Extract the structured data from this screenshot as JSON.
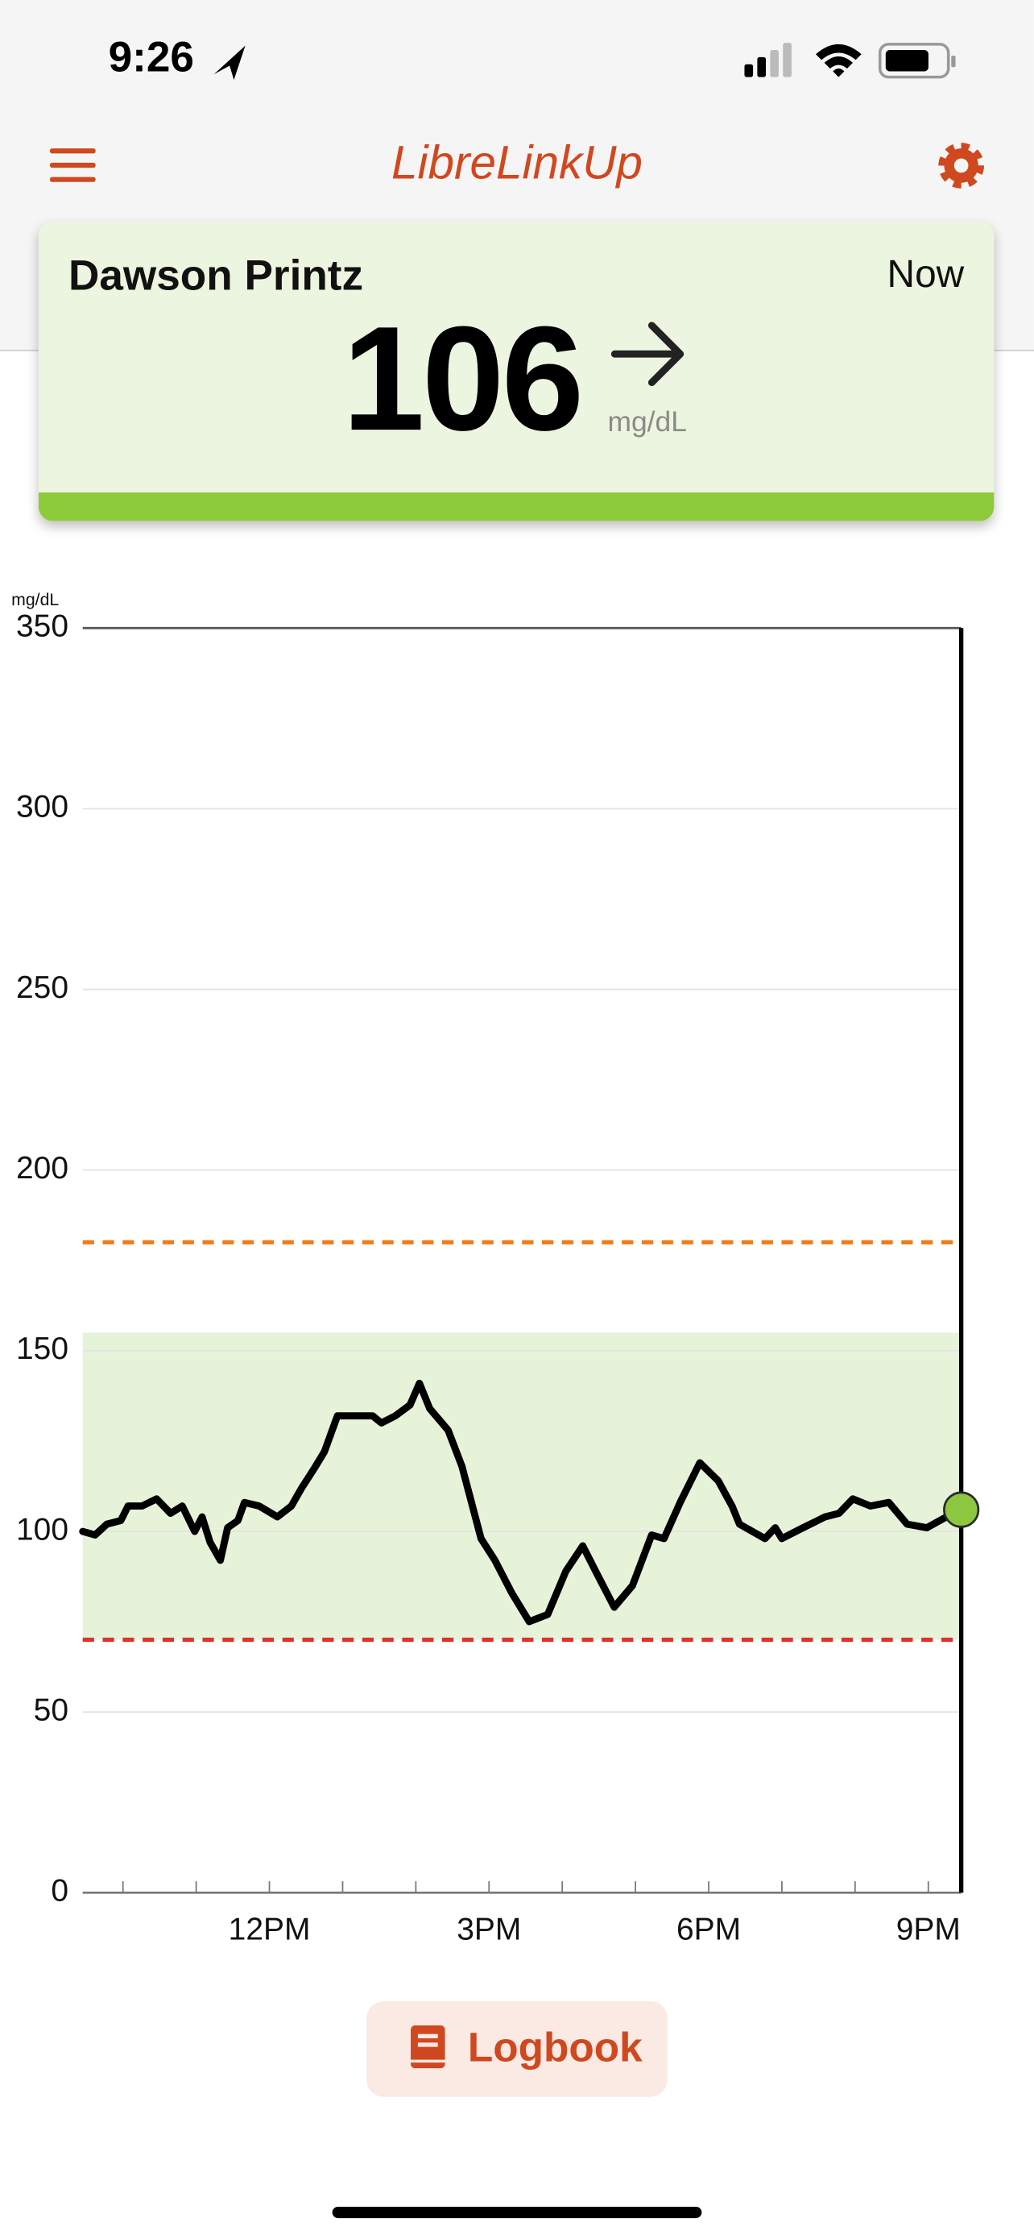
{
  "status_bar": {
    "time": "9:26"
  },
  "header": {
    "title": "LibreLinkUp"
  },
  "reading": {
    "name": "Dawson Printz",
    "time": "Now",
    "value": 106,
    "unit": "mg/dL"
  },
  "chart_data": {
    "type": "line",
    "y_label": "mg/dL",
    "ylim": [
      0,
      350
    ],
    "yticks": [
      0,
      50,
      100,
      150,
      200,
      250,
      300,
      350
    ],
    "grid": true,
    "xlim": [
      9.45,
      21.45
    ],
    "xticks": [
      {
        "value": 12,
        "label": "12PM"
      },
      {
        "value": 15,
        "label": "3PM"
      },
      {
        "value": 18,
        "label": "6PM"
      },
      {
        "value": 21,
        "label": "9PM"
      }
    ],
    "x_minor_ticks": [
      10,
      11,
      13,
      14,
      16,
      17,
      19,
      20
    ],
    "target_range": [
      70,
      155
    ],
    "target_color": "#e6f3d9",
    "high_limit": 180,
    "high_color": "#f07d1a",
    "low_limit": 70,
    "low_color": "#e0322d",
    "color": "#000000",
    "current_color": "#8dc63f",
    "x": [
      9.45,
      9.62,
      9.78,
      9.97,
      10.07,
      10.26,
      10.46,
      10.65,
      10.81,
      10.98,
      11.08,
      11.19,
      11.33,
      11.43,
      11.57,
      11.66,
      11.86,
      12.11,
      12.3,
      12.44,
      12.6,
      12.75,
      12.93,
      13.18,
      13.41,
      13.53,
      13.72,
      13.92,
      14.05,
      14.19,
      14.44,
      14.63,
      14.89,
      15.08,
      15.31,
      15.55,
      15.8,
      16.05,
      16.28,
      16.48,
      16.71,
      16.96,
      17.22,
      17.39,
      17.61,
      17.88,
      18.13,
      18.32,
      18.42,
      18.77,
      18.91,
      19.0,
      19.29,
      19.59,
      19.78,
      19.97,
      20.21,
      20.46,
      20.71,
      20.98,
      21.25,
      21.45
    ],
    "values": [
      100,
      99,
      102,
      103,
      107,
      107,
      109,
      105,
      107,
      100,
      104,
      97,
      92,
      101,
      103,
      108,
      107,
      104,
      107,
      112,
      117,
      122,
      132,
      132,
      132,
      130,
      132,
      135,
      141,
      134,
      128,
      118,
      98,
      92,
      83,
      75,
      77,
      89,
      96,
      88,
      79,
      85,
      99,
      98,
      108,
      119,
      114,
      107,
      102,
      98,
      101,
      98,
      101,
      104,
      105,
      109,
      107,
      108,
      102,
      101,
      104,
      106
    ]
  },
  "button": {
    "label": "Logbook"
  }
}
